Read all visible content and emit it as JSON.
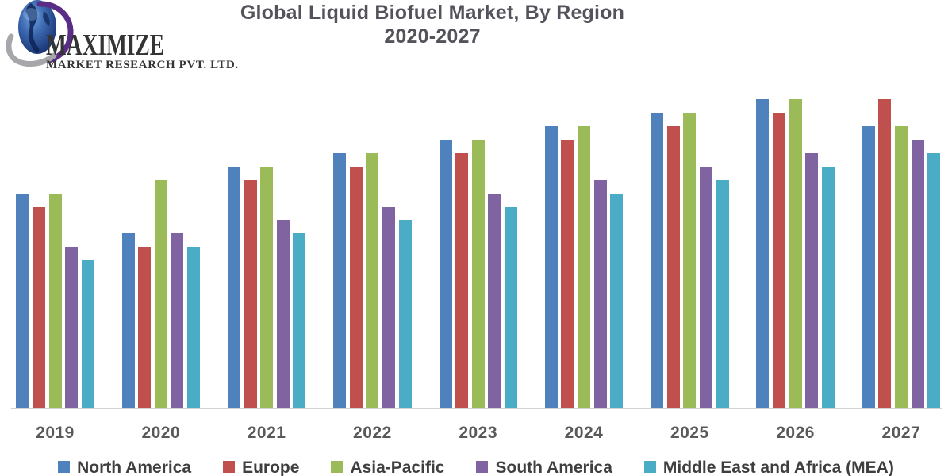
{
  "logo": {
    "brand": "MAXIMIZE",
    "subtitle": "MARKET RESEARCH PVT. LTD."
  },
  "title": {
    "line1": "Global Liquid Biofuel Market, By Region",
    "line2": "2020-2027"
  },
  "chart_data": {
    "type": "bar",
    "title": "Global Liquid Biofuel Market, By Region 2020-2027",
    "categories": [
      "2019",
      "2020",
      "2021",
      "2022",
      "2023",
      "2024",
      "2025",
      "2026",
      "2027"
    ],
    "series": [
      {
        "name": "North America",
        "color": "#4F81BD",
        "values": [
          16,
          13,
          18,
          19,
          20,
          21,
          22,
          23,
          21
        ]
      },
      {
        "name": "Europe",
        "color": "#C0504D",
        "values": [
          15,
          12,
          17,
          18,
          19,
          20,
          21,
          22,
          23
        ]
      },
      {
        "name": "Asia-Pacific",
        "color": "#9BBB59",
        "values": [
          16,
          17,
          18,
          19,
          20,
          21,
          22,
          23,
          21
        ]
      },
      {
        "name": "South America",
        "color": "#8064A2",
        "values": [
          12,
          13,
          14,
          15,
          16,
          17,
          18,
          19,
          20
        ]
      },
      {
        "name": "Middle East and Africa (MEA)",
        "color": "#4BACC6",
        "values": [
          11,
          12,
          13,
          14,
          15,
          16,
          17,
          18,
          19
        ]
      }
    ],
    "xlabel": "",
    "ylabel": "",
    "y_axis_visible": false,
    "gridlines": false,
    "legend_position": "bottom"
  },
  "colors": {
    "title_text": "#53535b",
    "tick_label": "#595959",
    "legend_text": "#3f3f3f",
    "axis_line": "#d2d2d2",
    "background": "#ffffff"
  }
}
